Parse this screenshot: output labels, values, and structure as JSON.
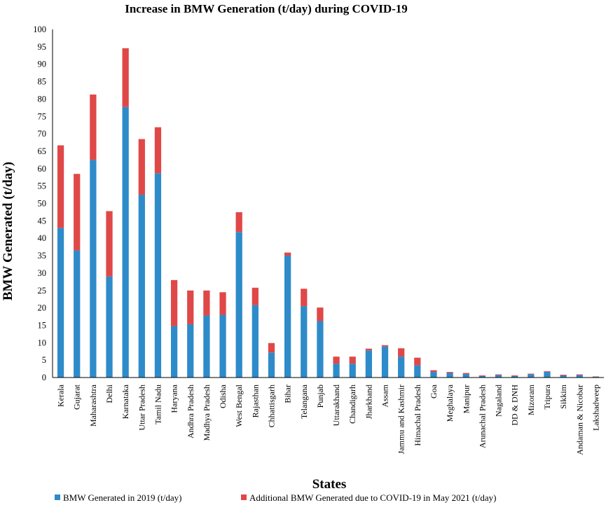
{
  "chart_data": {
    "type": "bar",
    "stacked": true,
    "title": "Increase in BMW Generation (t/day) during COVID-19",
    "xlabel": "States",
    "ylabel": "BMW Generated (t/day)",
    "ylim": [
      0,
      100
    ],
    "yticks": [
      0,
      5,
      10,
      15,
      20,
      25,
      30,
      35,
      40,
      45,
      50,
      55,
      60,
      65,
      70,
      75,
      80,
      85,
      90,
      95,
      100
    ],
    "categories": [
      "Kerala",
      "Gujarat",
      "Maharashtra",
      "Delhi",
      "Karnataka",
      "Uttar Pradesh",
      "Tamil Nadu",
      "Haryana",
      "Andhra Pradesh",
      "Madhya Pradesh",
      "Odisha",
      "West Bengal",
      "Rajasthan",
      "Chhattisgarh",
      "Bihar",
      "Telangana",
      "Punjab",
      "Uttarakhand",
      "Chandigarh",
      "Jharkhand",
      "Assam",
      "Jammu and Kashmir",
      "Himachal Pradesh",
      "Goa",
      "Meghalaya",
      "Manipur",
      "Arunachal Pradesh",
      "Nagaland",
      "DD & DNH",
      "Mizoram",
      "Tripura",
      "Sikkim",
      "Andaman & Nicobar",
      "Lakshadweep"
    ],
    "series": [
      {
        "name": "BMW Generated in 2019 (t/day)",
        "color": "#2e8bc9",
        "values": [
          43,
          36.5,
          62.5,
          29,
          77.7,
          52.5,
          58.7,
          14.8,
          15.3,
          17.8,
          18,
          41.8,
          20.8,
          7.2,
          35,
          20.5,
          16.2,
          4,
          4,
          7.8,
          8.9,
          6,
          3.5,
          1.6,
          1.3,
          1,
          0.4,
          0.7,
          0.4,
          0.9,
          1.6,
          0.6,
          0.7,
          0.2
        ]
      },
      {
        "name": "Additional BMW Generated due to COVID-19 in May 2021 (t/day)",
        "color": "#e04848",
        "values": [
          23.7,
          22,
          18.8,
          18.8,
          16.9,
          16,
          13.2,
          13.2,
          9.7,
          7.2,
          6.5,
          5.7,
          5,
          2.7,
          0.9,
          5,
          3.9,
          2,
          2,
          0.5,
          0.4,
          2.4,
          2.2,
          0.5,
          0.3,
          0.3,
          0.2,
          0.2,
          0.2,
          0.2,
          0.2,
          0.2,
          0.2,
          0.1
        ]
      }
    ],
    "legend_position": "bottom"
  }
}
